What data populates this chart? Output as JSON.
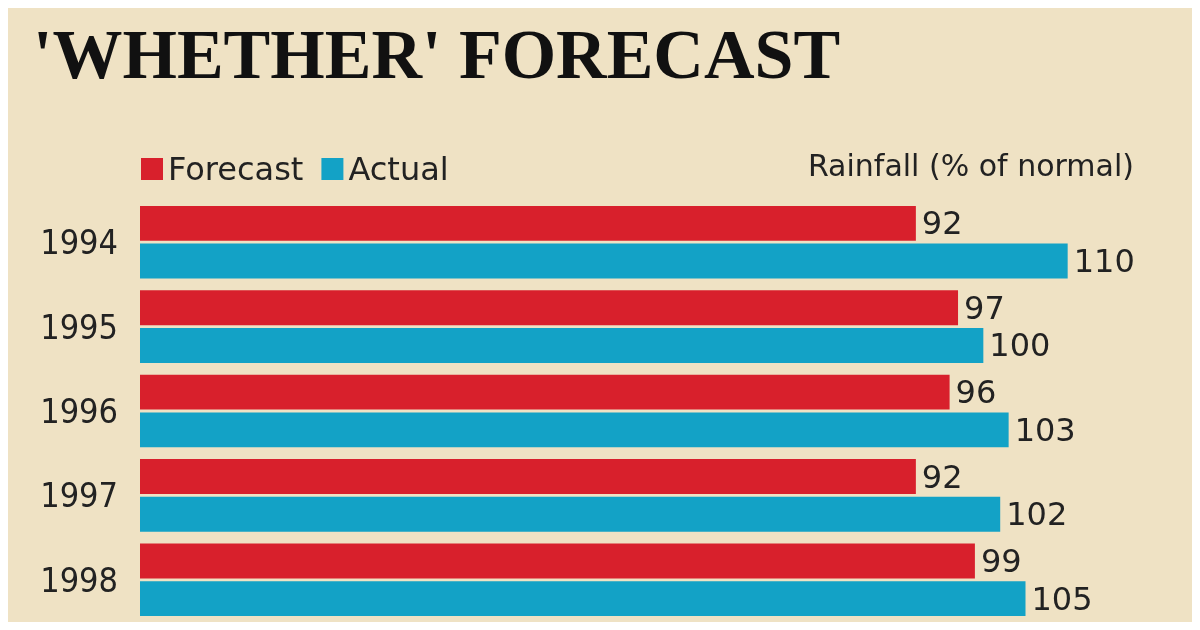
{
  "chart_data": {
    "type": "bar",
    "orientation": "horizontal",
    "title": "'WHETHER' FORECAST",
    "xlabel": "Rainfall (% of normal)",
    "categories": [
      "1994",
      "1995",
      "1996",
      "1997",
      "1998"
    ],
    "series": [
      {
        "name": "Forecast",
        "color": "#d8202c",
        "values": [
          92,
          97,
          96,
          92,
          99
        ]
      },
      {
        "name": "Actual",
        "color": "#13a2c6",
        "values": [
          110,
          100,
          103,
          102,
          105
        ]
      }
    ],
    "data_labels": true,
    "legend": "top left",
    "grid": false
  }
}
